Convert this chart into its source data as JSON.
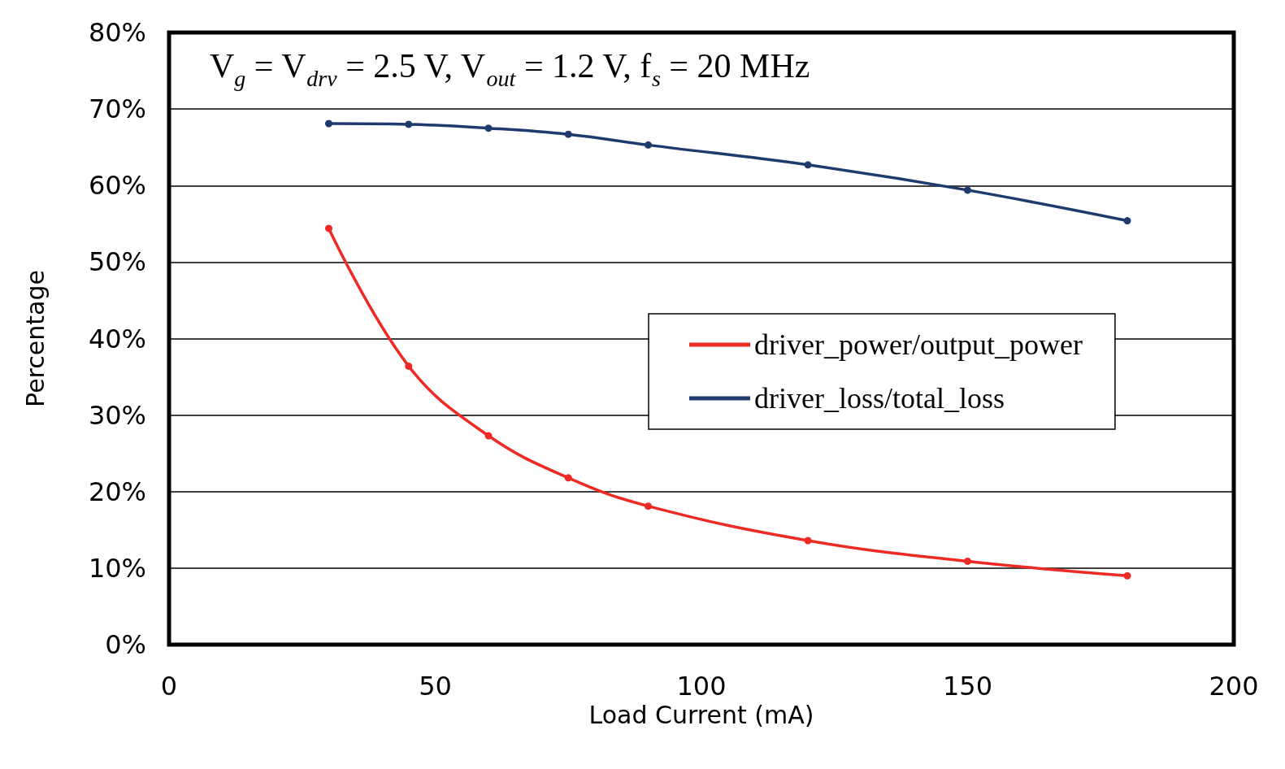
{
  "chart_data": {
    "type": "line",
    "xlabel": "Load Current (mA)",
    "ylabel": "Percentage",
    "annotations": [
      "V$_{g}$ = V$_{drv}$ = 2.5 V, V$_{out}$ = 1.2 V, f$_{s}$ = 20 MHz"
    ],
    "x": [
      30,
      45,
      60,
      75,
      90,
      120,
      150,
      180
    ],
    "series": [
      {
        "name": "driver_power/output_power",
        "color": "#ee2a24",
        "values": [
          54.4,
          36.4,
          27.3,
          21.8,
          18.1,
          13.6,
          10.9,
          9.0
        ]
      },
      {
        "name": "driver_loss/total_loss",
        "color": "#1f3b6e",
        "values": [
          68.1,
          68.0,
          67.5,
          66.7,
          65.3,
          62.7,
          59.4,
          55.4
        ]
      }
    ],
    "xlim": [
      0,
      200
    ],
    "xticks": [
      0,
      50,
      100,
      150,
      200
    ],
    "ylim": [
      0,
      80
    ],
    "yticks": [
      {
        "value": 0,
        "label": "0%"
      },
      {
        "value": 10,
        "label": "10%"
      },
      {
        "value": 20,
        "label": "20%"
      },
      {
        "value": 30,
        "label": "30%"
      },
      {
        "value": 40,
        "label": "40%"
      },
      {
        "value": 50,
        "label": "50%"
      },
      {
        "value": 60,
        "label": "60%"
      },
      {
        "value": 70,
        "label": "70%"
      },
      {
        "value": 80,
        "label": "80%"
      }
    ],
    "grid": "y",
    "legend": "right",
    "marker": "circle",
    "line_style": "solid"
  }
}
